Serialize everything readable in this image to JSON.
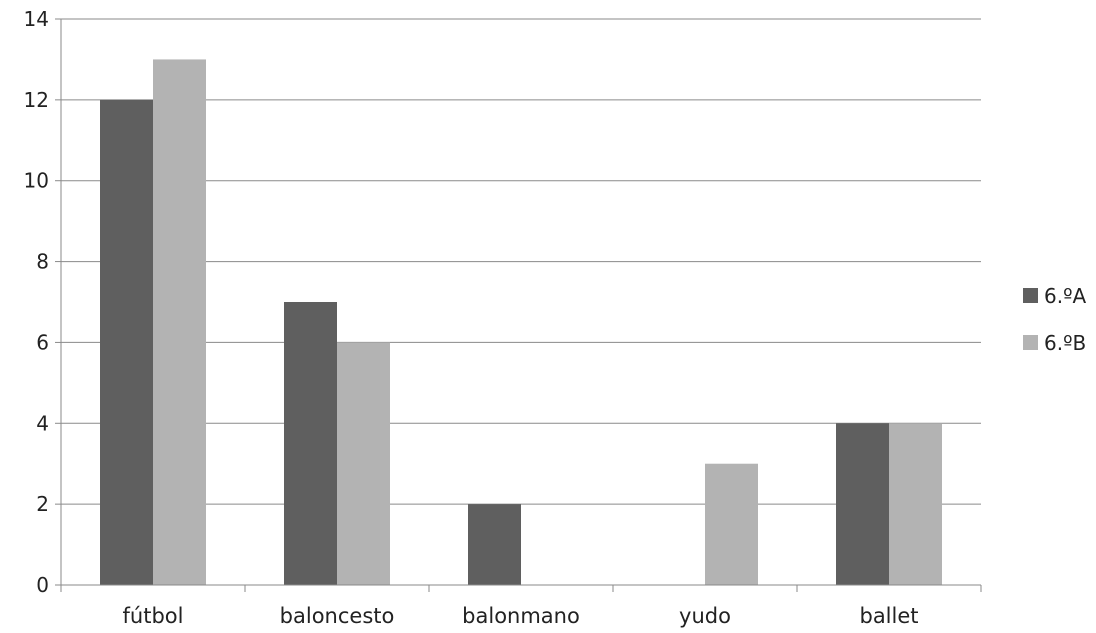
{
  "chart_data": {
    "type": "bar",
    "title": "",
    "xlabel": "",
    "ylabel": "",
    "categories": [
      "fútbol",
      "baloncesto",
      "balonmano",
      "yudo",
      "ballet"
    ],
    "series": [
      {
        "name": "6.ºA",
        "values": [
          12,
          7,
          2,
          0,
          4
        ],
        "color": "#5f5f5f"
      },
      {
        "name": "6.ºB",
        "values": [
          13,
          6,
          0,
          3,
          4
        ],
        "color": "#b3b3b3"
      }
    ],
    "ylim": [
      0,
      14
    ],
    "yticks": [
      0,
      2,
      4,
      6,
      8,
      10,
      12,
      14
    ],
    "grid": true,
    "legend": "right"
  }
}
